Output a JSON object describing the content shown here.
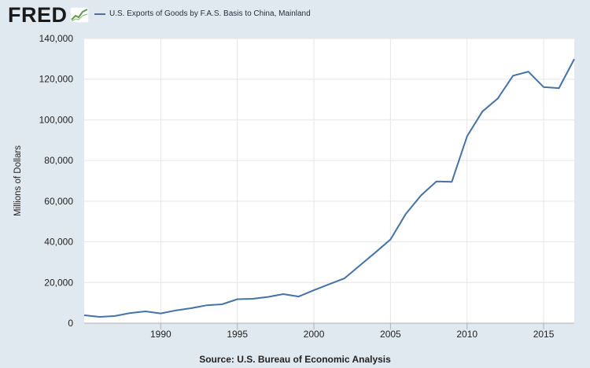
{
  "header": {
    "logo_text": "FRED",
    "logo_icon": "line-graph-icon"
  },
  "colors": {
    "background": "#e1e9f0",
    "plot_background": "#ffffff",
    "series_line": "#4572a7",
    "gridline": "#e6e6e6"
  },
  "footer": {
    "source": "Source: U.S. Bureau of Economic Analysis"
  },
  "chart_data": {
    "type": "line",
    "title": "",
    "legend": [
      "U.S. Exports of Goods by F.A.S. Basis to China, Mainland"
    ],
    "legend_position": "top-left",
    "xlabel": "",
    "ylabel": "Millions of Dollars",
    "xlim": [
      1985,
      2017
    ],
    "ylim": [
      0,
      140000
    ],
    "grid": true,
    "x_ticks": [
      1990,
      1995,
      2000,
      2005,
      2010,
      2015
    ],
    "y_ticks": [
      0,
      20000,
      40000,
      60000,
      80000,
      100000,
      120000,
      140000
    ],
    "y_tick_labels": [
      "0",
      "20,000",
      "40,000",
      "60,000",
      "80,000",
      "100,000",
      "120,000",
      "140,000"
    ],
    "series": [
      {
        "name": "U.S. Exports of Goods by F.A.S. Basis to China, Mainland",
        "x": [
          1985,
          1986,
          1987,
          1988,
          1989,
          1990,
          1991,
          1992,
          1993,
          1994,
          1995,
          1996,
          1997,
          1998,
          1999,
          2000,
          2001,
          2002,
          2003,
          2004,
          2005,
          2006,
          2007,
          2008,
          2009,
          2010,
          2011,
          2012,
          2013,
          2014,
          2015,
          2016,
          2017
        ],
        "values": [
          3900,
          3100,
          3500,
          5000,
          5800,
          4800,
          6300,
          7400,
          8800,
          9300,
          11800,
          12000,
          12900,
          14300,
          13100,
          16200,
          19200,
          22100,
          28400,
          34700,
          41200,
          53700,
          62900,
          69700,
          69500,
          91900,
          104100,
          110500,
          121700,
          123700,
          116100,
          115600,
          129900
        ]
      }
    ]
  }
}
